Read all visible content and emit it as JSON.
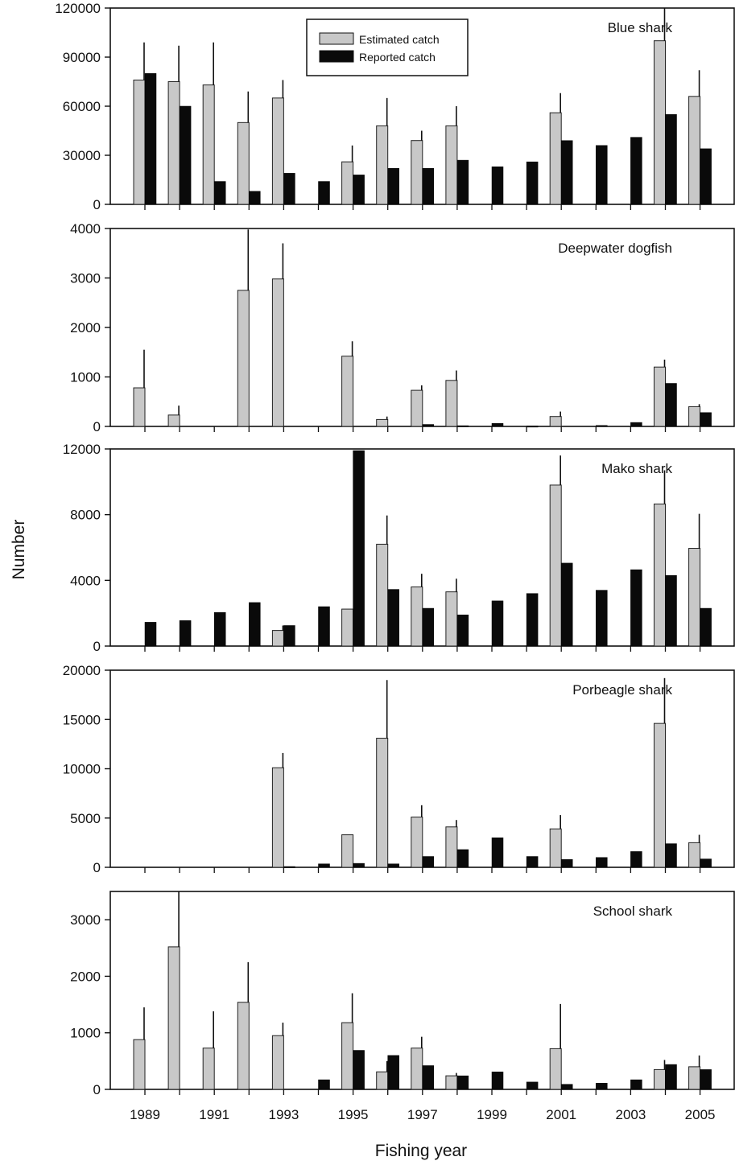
{
  "chart_data": {
    "type": "bar",
    "xlabel": "Fishing year",
    "ylabel": "Number",
    "legend": {
      "placement": "top-center",
      "series": [
        "Estimated catch",
        "Reported catch"
      ]
    },
    "colors": {
      "estimated": "#c8c8c8",
      "reported": "#0a0a0a",
      "errorbar": "#111111"
    },
    "categories": [
      1989,
      1990,
      1991,
      1992,
      1993,
      1994,
      1995,
      1996,
      1997,
      1998,
      1999,
      2000,
      2001,
      2002,
      2003,
      2004,
      2005
    ],
    "x_tick_labels": [
      "1989",
      "1991",
      "1993",
      "1995",
      "1997",
      "1999",
      "2001",
      "2003",
      "2005"
    ],
    "panels": [
      {
        "title": "Blue shark",
        "ylim": [
          0,
          120000
        ],
        "yticks": [
          0,
          30000,
          60000,
          90000,
          120000
        ],
        "series": [
          {
            "name": "Estimated catch",
            "values": [
              76000,
              75000,
              73000,
              50000,
              65000,
              null,
              26000,
              48000,
              39000,
              48000,
              null,
              null,
              56000,
              null,
              null,
              100000,
              66000
            ],
            "error_upper": [
              99000,
              97000,
              99000,
              69000,
              76000,
              null,
              36000,
              65000,
              45000,
              60000,
              null,
              null,
              68000,
              null,
              null,
              123000,
              82000
            ]
          },
          {
            "name": "Reported catch",
            "values": [
              80000,
              60000,
              14000,
              8000,
              19000,
              14000,
              18000,
              22000,
              22000,
              27000,
              23000,
              26000,
              39000,
              36000,
              41000,
              55000,
              34000
            ]
          }
        ]
      },
      {
        "title": "Deepwater dogfish",
        "ylim": [
          0,
          4000
        ],
        "yticks": [
          0,
          1000,
          2000,
          3000,
          4000
        ],
        "series": [
          {
            "name": "Estimated catch",
            "values": [
              780,
              230,
              null,
              2750,
              2980,
              null,
              1420,
              140,
              730,
              930,
              null,
              null,
              200,
              null,
              null,
              1200,
              400
            ],
            "error_upper": [
              1550,
              420,
              null,
              3980,
              3700,
              null,
              1720,
              200,
              830,
              1130,
              null,
              null,
              300,
              null,
              null,
              1350,
              450
            ]
          },
          {
            "name": "Reported catch",
            "values": [
              null,
              null,
              null,
              null,
              null,
              null,
              null,
              null,
              40,
              15,
              60,
              10,
              null,
              20,
              80,
              870,
              280
            ]
          }
        ]
      },
      {
        "title": "Mako shark",
        "ylim": [
          0,
          12000
        ],
        "yticks": [
          0,
          4000,
          8000,
          12000
        ],
        "series": [
          {
            "name": "Estimated catch",
            "values": [
              null,
              null,
              null,
              null,
              950,
              null,
              2250,
              6200,
              3600,
              3300,
              null,
              null,
              9800,
              null,
              null,
              8650,
              5950
            ],
            "error_upper": [
              null,
              null,
              null,
              null,
              1250,
              null,
              null,
              7950,
              4400,
              4100,
              null,
              null,
              11600,
              null,
              null,
              10700,
              8050
            ]
          },
          {
            "name": "Reported catch",
            "values": [
              1450,
              1550,
              2050,
              2650,
              1250,
              2400,
              11900,
              3450,
              2300,
              1900,
              2750,
              3200,
              5050,
              3400,
              4650,
              4300,
              2300
            ]
          }
        ]
      },
      {
        "title": "Porbeagle shark",
        "ylim": [
          0,
          20000
        ],
        "yticks": [
          0,
          5000,
          10000,
          15000,
          20000
        ],
        "series": [
          {
            "name": "Estimated catch",
            "values": [
              null,
              null,
              null,
              null,
              10100,
              null,
              3300,
              13100,
              5100,
              4100,
              null,
              null,
              3900,
              null,
              null,
              14600,
              2500
            ],
            "error_upper": [
              null,
              null,
              null,
              null,
              11600,
              null,
              null,
              19000,
              6300,
              4800,
              null,
              null,
              5300,
              null,
              null,
              19200,
              3300
            ]
          },
          {
            "name": "Reported catch",
            "values": [
              null,
              null,
              null,
              null,
              80,
              350,
              400,
              350,
              1100,
              1800,
              3000,
              1100,
              800,
              1000,
              1600,
              2400,
              850
            ]
          }
        ]
      },
      {
        "title": "School shark",
        "ylim": [
          0,
          3500
        ],
        "yticks": [
          0,
          1000,
          2000,
          3000
        ],
        "series": [
          {
            "name": "Estimated catch",
            "values": [
              880,
              2520,
              730,
              1540,
              950,
              null,
              1180,
              310,
              730,
              240,
              null,
              null,
              720,
              null,
              null,
              350,
              400
            ],
            "error_upper": [
              1450,
              3500,
              1380,
              2250,
              1180,
              null,
              1700,
              500,
              930,
              290,
              null,
              null,
              1510,
              null,
              null,
              520,
              600
            ]
          },
          {
            "name": "Reported catch",
            "values": [
              null,
              null,
              null,
              null,
              null,
              170,
              690,
              600,
              420,
              240,
              310,
              130,
              90,
              110,
              170,
              440,
              350
            ]
          }
        ]
      }
    ]
  }
}
